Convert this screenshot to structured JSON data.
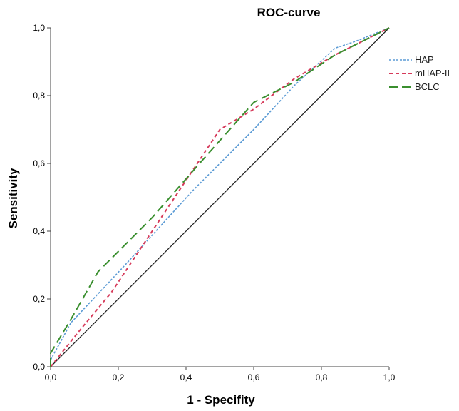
{
  "chart_data": {
    "type": "line",
    "title": "ROC-curve",
    "xlabel": "1 - Specifity",
    "ylabel": "Sensitivity",
    "xlim": [
      0,
      1
    ],
    "ylim": [
      0,
      1
    ],
    "x_ticks": [
      "0,0",
      "0,2",
      "0,4",
      "0,6",
      "0,8",
      "1,0"
    ],
    "y_ticks": [
      "0,0",
      "0,2",
      "0,4",
      "0,6",
      "0,8",
      "1,0"
    ],
    "grid": false,
    "legend_position": "top-right",
    "reference_line": {
      "x": [
        0,
        1
      ],
      "y": [
        0,
        1
      ],
      "color": "#222222"
    },
    "series": [
      {
        "name": "HAP",
        "color": "#5b9bd5",
        "dash": "dotted",
        "x": [
          0.0,
          0.0,
          0.06,
          0.22,
          0.42,
          0.6,
          0.72,
          0.84,
          0.9,
          1.0
        ],
        "y": [
          0.0,
          0.02,
          0.13,
          0.3,
          0.52,
          0.7,
          0.83,
          0.94,
          0.96,
          1.0
        ]
      },
      {
        "name": "mHAP-II",
        "color": "#d63a5a",
        "dash": "short-dash",
        "x": [
          0.0,
          0.08,
          0.18,
          0.3,
          0.42,
          0.5,
          0.6,
          0.72,
          0.84,
          1.0
        ],
        "y": [
          0.0,
          0.1,
          0.22,
          0.4,
          0.58,
          0.7,
          0.76,
          0.85,
          0.92,
          1.0
        ]
      },
      {
        "name": "BCLC",
        "color": "#3a8f2f",
        "dash": "long-dash",
        "x": [
          0.0,
          0.0,
          0.06,
          0.14,
          0.3,
          0.44,
          0.52,
          0.6,
          0.72,
          0.84,
          1.0
        ],
        "y": [
          0.0,
          0.04,
          0.14,
          0.28,
          0.44,
          0.6,
          0.69,
          0.78,
          0.84,
          0.92,
          1.0
        ]
      }
    ]
  }
}
